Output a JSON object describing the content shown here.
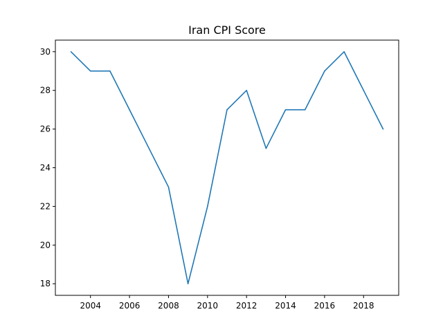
{
  "chart_data": {
    "type": "line",
    "title": "Iran CPI Score",
    "xlabel": "",
    "ylabel": "",
    "x": [
      2003,
      2004,
      2005,
      2006,
      2007,
      2008,
      2009,
      2010,
      2011,
      2012,
      2013,
      2014,
      2015,
      2016,
      2017,
      2018,
      2019
    ],
    "series": [
      {
        "values": [
          30,
          29,
          29,
          27,
          25,
          23,
          18,
          22,
          27,
          28,
          25,
          27,
          27,
          29,
          30,
          28,
          26
        ],
        "color": "#1f77b4"
      }
    ],
    "xticks": [
      2004,
      2006,
      2008,
      2010,
      2012,
      2014,
      2016,
      2018
    ],
    "yticks": [
      18,
      20,
      22,
      24,
      26,
      28,
      30
    ],
    "xlim": [
      2002.2,
      2019.8
    ],
    "ylim": [
      17.4,
      30.6
    ],
    "grid": false,
    "legend": false
  }
}
